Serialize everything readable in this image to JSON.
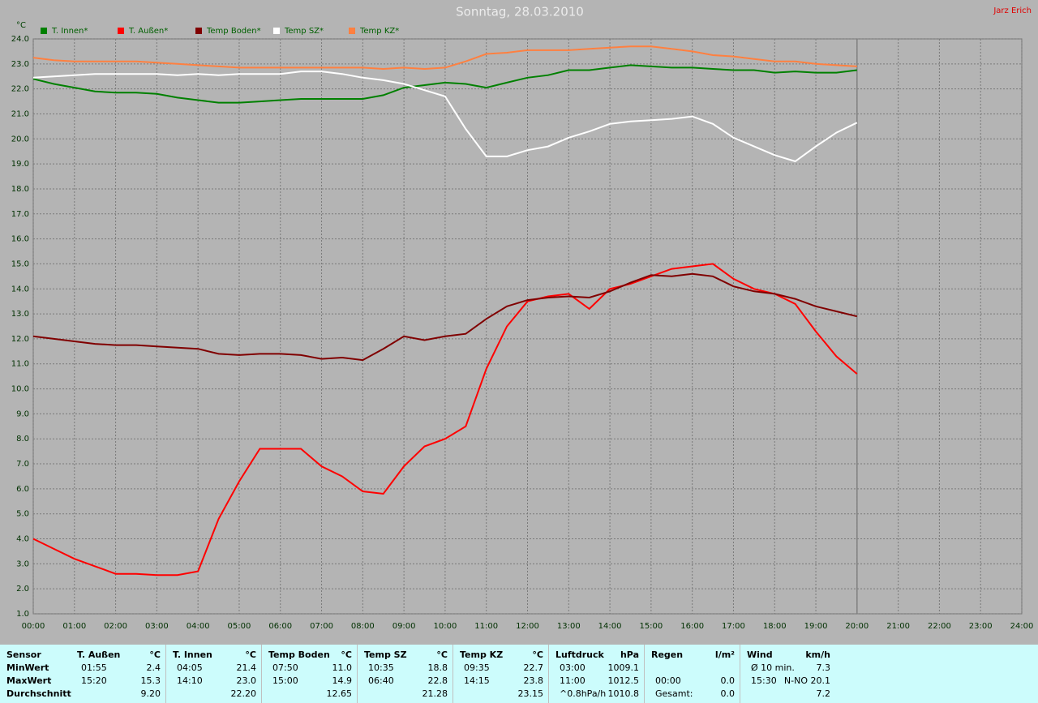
{
  "author": "Jarz Erich",
  "chart_data": {
    "type": "line",
    "title": "Sonntag, 28.03.2010",
    "y_label": "°C",
    "legend": "top",
    "grid": true,
    "x": [
      0,
      0.5,
      1,
      1.5,
      2,
      2.5,
      3,
      3.5,
      4,
      4.5,
      5,
      5.5,
      6,
      6.5,
      7,
      7.5,
      8,
      8.5,
      9,
      9.5,
      10,
      10.5,
      11,
      11.5,
      12,
      12.5,
      13,
      13.5,
      14,
      14.5,
      15,
      15.5,
      16,
      16.5,
      17,
      17.5,
      18,
      18.5,
      19,
      19.5,
      20
    ],
    "xlim": [
      0,
      24
    ],
    "xticks": [
      {
        "value": 0,
        "label": "00:00"
      },
      {
        "value": 1,
        "label": "01:00"
      },
      {
        "value": 2,
        "label": "02:00"
      },
      {
        "value": 3,
        "label": "03:00"
      },
      {
        "value": 4,
        "label": "04:00"
      },
      {
        "value": 5,
        "label": "05:00"
      },
      {
        "value": 6,
        "label": "06:00"
      },
      {
        "value": 7,
        "label": "07:00"
      },
      {
        "value": 8,
        "label": "08:00"
      },
      {
        "value": 9,
        "label": "09:00"
      },
      {
        "value": 10,
        "label": "10:00"
      },
      {
        "value": 11,
        "label": "11:00"
      },
      {
        "value": 12,
        "label": "12:00"
      },
      {
        "value": 13,
        "label": "13:00"
      },
      {
        "value": 14,
        "label": "14:00"
      },
      {
        "value": 15,
        "label": "15:00"
      },
      {
        "value": 16,
        "label": "16:00"
      },
      {
        "value": 17,
        "label": "17:00"
      },
      {
        "value": 18,
        "label": "18:00"
      },
      {
        "value": 19,
        "label": "19:00"
      },
      {
        "value": 20,
        "label": "20:00"
      },
      {
        "value": 21,
        "label": "21:00"
      },
      {
        "value": 22,
        "label": "22:00"
      },
      {
        "value": 23,
        "label": "23:00"
      },
      {
        "value": 24,
        "label": "24:00"
      }
    ],
    "ylim": [
      1,
      24
    ],
    "yticks": [
      {
        "value": 1,
        "label": "1.0"
      },
      {
        "value": 2,
        "label": "2.0"
      },
      {
        "value": 3,
        "label": "3.0"
      },
      {
        "value": 4,
        "label": "4.0"
      },
      {
        "value": 5,
        "label": "5.0"
      },
      {
        "value": 6,
        "label": "6.0"
      },
      {
        "value": 7,
        "label": "7.0"
      },
      {
        "value": 8,
        "label": "8.0"
      },
      {
        "value": 9,
        "label": "9.0"
      },
      {
        "value": 10,
        "label": "10.0"
      },
      {
        "value": 11,
        "label": "11.0"
      },
      {
        "value": 12,
        "label": "12.0"
      },
      {
        "value": 13,
        "label": "13.0"
      },
      {
        "value": 14,
        "label": "14.0"
      },
      {
        "value": 15,
        "label": "15.0"
      },
      {
        "value": 16,
        "label": "16.0"
      },
      {
        "value": 17,
        "label": "17.0"
      },
      {
        "value": 18,
        "label": "18.0"
      },
      {
        "value": 19,
        "label": "19.0"
      },
      {
        "value": 20,
        "label": "20.0"
      },
      {
        "value": 21,
        "label": "21.0"
      },
      {
        "value": 22,
        "label": "22.0"
      },
      {
        "value": 23,
        "label": "23.0"
      },
      {
        "value": 24,
        "label": "24.0"
      }
    ],
    "series": [
      {
        "name": "T. Innen*",
        "color": "#008000",
        "values": [
          22.4,
          22.2,
          22.05,
          21.9,
          21.85,
          21.85,
          21.8,
          21.65,
          21.55,
          21.45,
          21.45,
          21.5,
          21.55,
          21.6,
          21.6,
          21.6,
          21.6,
          21.75,
          22.05,
          22.15,
          22.25,
          22.2,
          22.05,
          22.25,
          22.45,
          22.55,
          22.75,
          22.75,
          22.85,
          22.95,
          22.9,
          22.85,
          22.85,
          22.8,
          22.75,
          22.75,
          22.65,
          22.7,
          22.65,
          22.65,
          22.75
        ]
      },
      {
        "name": "T. Außen*",
        "color": "#ff0000",
        "values": [
          4.0,
          3.6,
          3.2,
          2.9,
          2.6,
          2.6,
          2.55,
          2.55,
          2.7,
          4.8,
          6.3,
          7.6,
          7.6,
          7.6,
          6.9,
          6.5,
          5.9,
          5.8,
          6.9,
          7.7,
          8.0,
          8.5,
          10.8,
          12.5,
          13.5,
          13.7,
          13.8,
          13.2,
          14.0,
          14.2,
          14.5,
          14.8,
          14.9,
          15.0,
          14.4,
          14.0,
          13.8,
          13.4,
          12.3,
          11.3,
          10.6
        ]
      },
      {
        "name": "Temp Boden*",
        "color": "#800000",
        "values": [
          12.1,
          12.0,
          11.9,
          11.8,
          11.75,
          11.75,
          11.7,
          11.65,
          11.6,
          11.4,
          11.35,
          11.4,
          11.4,
          11.35,
          11.2,
          11.25,
          11.15,
          11.6,
          12.1,
          11.95,
          12.1,
          12.2,
          12.8,
          13.3,
          13.55,
          13.65,
          13.7,
          13.65,
          13.9,
          14.25,
          14.55,
          14.5,
          14.6,
          14.5,
          14.1,
          13.9,
          13.8,
          13.6,
          13.3,
          13.1,
          12.9
        ]
      },
      {
        "name": "Temp SZ*",
        "color": "#ffffff",
        "values": [
          22.45,
          22.5,
          22.55,
          22.6,
          22.6,
          22.6,
          22.6,
          22.55,
          22.6,
          22.55,
          22.6,
          22.6,
          22.6,
          22.7,
          22.7,
          22.6,
          22.45,
          22.35,
          22.2,
          21.95,
          21.7,
          20.4,
          19.3,
          19.3,
          19.55,
          19.7,
          20.05,
          20.3,
          20.6,
          20.7,
          20.75,
          20.8,
          20.9,
          20.6,
          20.05,
          19.7,
          19.35,
          19.1,
          19.7,
          20.25,
          20.65
        ]
      },
      {
        "name": "Temp KZ*",
        "color": "#ff8040",
        "values": [
          23.25,
          23.15,
          23.1,
          23.1,
          23.1,
          23.1,
          23.05,
          23.0,
          22.95,
          22.9,
          22.85,
          22.85,
          22.85,
          22.85,
          22.85,
          22.85,
          22.85,
          22.8,
          22.85,
          22.8,
          22.85,
          23.1,
          23.4,
          23.45,
          23.55,
          23.55,
          23.55,
          23.6,
          23.65,
          23.7,
          23.7,
          23.6,
          23.5,
          23.35,
          23.3,
          23.2,
          23.1,
          23.1,
          23.0,
          22.95,
          22.9
        ]
      }
    ]
  },
  "table": {
    "row_labels_header": "Sensor",
    "row_labels": [
      "MinWert",
      "MaxWert",
      "Durchschnitt"
    ],
    "groups": [
      {
        "name": "T. Außen",
        "unit": "°C",
        "rows": [
          [
            "01:55",
            "2.4"
          ],
          [
            "15:20",
            "15.3"
          ],
          [
            null,
            "9.20"
          ]
        ]
      },
      {
        "name": "T. Innen",
        "unit": "°C",
        "rows": [
          [
            "04:05",
            "21.4"
          ],
          [
            "14:10",
            "23.0"
          ],
          [
            null,
            "22.20"
          ]
        ]
      },
      {
        "name": "Temp Boden",
        "unit": "°C",
        "rows": [
          [
            "07:50",
            "11.0"
          ],
          [
            "15:00",
            "14.9"
          ],
          [
            null,
            "12.65"
          ]
        ]
      },
      {
        "name": "Temp SZ",
        "unit": "°C",
        "rows": [
          [
            "10:35",
            "18.8"
          ],
          [
            "06:40",
            "22.8"
          ],
          [
            null,
            "21.28"
          ]
        ]
      },
      {
        "name": "Temp KZ",
        "unit": "°C",
        "rows": [
          [
            "09:35",
            "22.7"
          ],
          [
            "14:15",
            "23.8"
          ],
          [
            null,
            "23.15"
          ]
        ]
      },
      {
        "name": "Luftdruck",
        "unit": "hPa",
        "rows": [
          [
            "03:00",
            "1009.1"
          ],
          [
            "11:00",
            "1012.5"
          ],
          [
            "^0.8hPa/h",
            "1010.8"
          ]
        ]
      },
      {
        "name": "Regen",
        "unit": "l/m²",
        "rows": [
          [
            null,
            null
          ],
          [
            "00:00",
            "0.0"
          ],
          [
            "Gesamt:",
            "0.0"
          ]
        ]
      },
      {
        "name": "Wind",
        "unit": "km/h",
        "rows": [
          [
            "Ø 10 min.",
            "7.3"
          ],
          [
            "15:30",
            "N-NO 20.1"
          ],
          [
            null,
            "7.2"
          ]
        ]
      }
    ]
  }
}
